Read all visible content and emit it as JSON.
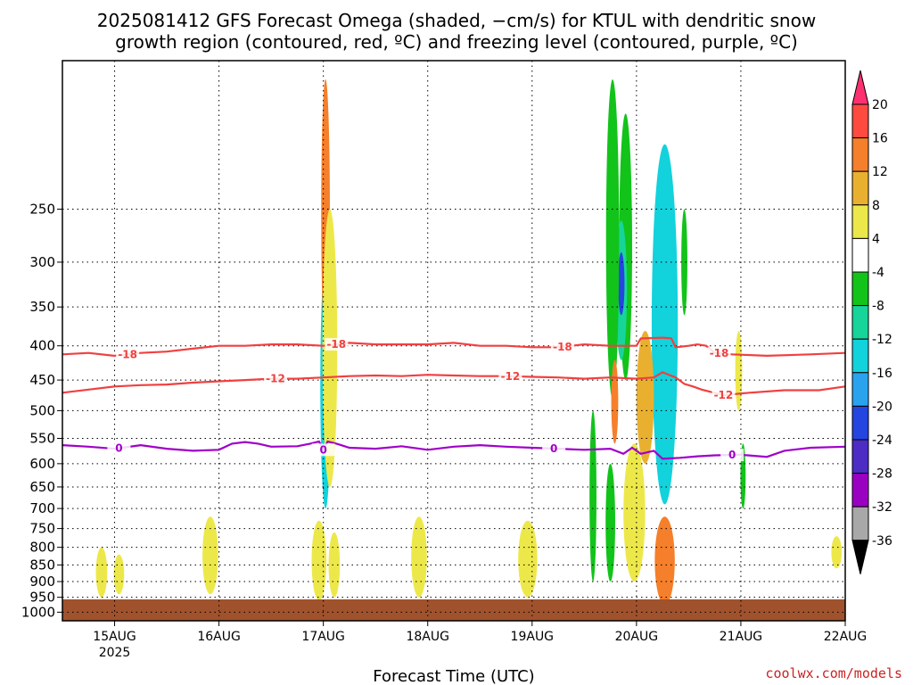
{
  "title_line1": "2025081412 GFS Forecast Omega (shaded, −cm/s) for KTUL with dendritic snow",
  "title_line2": "growth region (contoured, red, ºC) and freezing level (contoured, purple, ºC)",
  "credit": "coolwx.com/models",
  "colors": {
    "dgz": "#f04040",
    "freezing": "#a000c8",
    "ground": "#a0522d"
  },
  "chart_data": {
    "type": "heatmap",
    "xlabel": "Forecast Time (UTC)",
    "ylabel": "",
    "x_range_hours": [
      -12,
      168
    ],
    "y_range_hpa": [
      150,
      1030
    ],
    "y_scale": "log-pressure",
    "grid": true,
    "x_ticks": [
      {
        "hour": 0,
        "label": "15AUG",
        "sub": "2025"
      },
      {
        "hour": 24,
        "label": "16AUG",
        "sub": ""
      },
      {
        "hour": 48,
        "label": "17AUG",
        "sub": ""
      },
      {
        "hour": 72,
        "label": "18AUG",
        "sub": ""
      },
      {
        "hour": 96,
        "label": "19AUG",
        "sub": ""
      },
      {
        "hour": 120,
        "label": "20AUG",
        "sub": ""
      },
      {
        "hour": 144,
        "label": "21AUG",
        "sub": ""
      },
      {
        "hour": 168,
        "label": "22AUG",
        "sub": ""
      }
    ],
    "y_ticks": [
      250,
      300,
      350,
      400,
      450,
      500,
      550,
      600,
      650,
      700,
      750,
      800,
      850,
      900,
      950,
      1000
    ],
    "colorbar": {
      "labels": [
        20,
        16,
        12,
        8,
        4,
        -4,
        -8,
        -12,
        -16,
        -20,
        -24,
        -28,
        -32,
        -36
      ],
      "colors": [
        "#ff3070",
        "#ff4a40",
        "#f57f2a",
        "#e9b030",
        "#ede84a",
        "#ffffff",
        "#12c31a",
        "#17d59a",
        "#12d2dc",
        "#2aa3ef",
        "#2545e0",
        "#4d2bc5",
        "#9a00c2",
        "#a8a8a8",
        "#000000"
      ]
    },
    "contours": [
      {
        "value": -18,
        "label": "-18",
        "color": "#f04040",
        "points": [
          [
            -12,
            412
          ],
          [
            -6,
            410
          ],
          [
            0,
            414
          ],
          [
            6,
            410
          ],
          [
            12,
            408
          ],
          [
            18,
            404
          ],
          [
            24,
            400
          ],
          [
            30,
            400
          ],
          [
            36,
            398
          ],
          [
            42,
            398
          ],
          [
            48,
            400
          ],
          [
            54,
            396
          ],
          [
            60,
            398
          ],
          [
            66,
            398
          ],
          [
            72,
            398
          ],
          [
            78,
            396
          ],
          [
            84,
            400
          ],
          [
            90,
            400
          ],
          [
            96,
            402
          ],
          [
            102,
            402
          ],
          [
            108,
            398
          ],
          [
            114,
            400
          ],
          [
            120,
            400
          ],
          [
            121,
            390
          ],
          [
            126,
            389
          ],
          [
            128,
            390
          ],
          [
            129,
            402
          ],
          [
            132,
            400
          ],
          [
            134,
            398
          ],
          [
            136,
            400
          ],
          [
            138,
            410
          ],
          [
            142,
            412
          ],
          [
            150,
            414
          ],
          [
            160,
            412
          ],
          [
            168,
            410
          ]
        ],
        "label_hours": [
          3,
          51,
          103,
          139
        ]
      },
      {
        "value": -12,
        "label": "-12",
        "color": "#f04040",
        "points": [
          [
            -12,
            470
          ],
          [
            -6,
            465
          ],
          [
            0,
            460
          ],
          [
            6,
            458
          ],
          [
            12,
            457
          ],
          [
            18,
            454
          ],
          [
            24,
            452
          ],
          [
            30,
            450
          ],
          [
            36,
            448
          ],
          [
            42,
            448
          ],
          [
            48,
            446
          ],
          [
            54,
            444
          ],
          [
            60,
            443
          ],
          [
            66,
            444
          ],
          [
            72,
            442
          ],
          [
            78,
            443
          ],
          [
            84,
            444
          ],
          [
            90,
            444
          ],
          [
            96,
            445
          ],
          [
            102,
            446
          ],
          [
            108,
            448
          ],
          [
            114,
            446
          ],
          [
            120,
            448
          ],
          [
            124,
            446
          ],
          [
            126,
            438
          ],
          [
            129,
            446
          ],
          [
            131,
            456
          ],
          [
            133,
            460
          ],
          [
            135,
            465
          ],
          [
            140,
            474
          ],
          [
            146,
            470
          ],
          [
            154,
            466
          ],
          [
            162,
            466
          ],
          [
            168,
            460
          ]
        ],
        "label_hours": [
          37,
          91,
          140
        ]
      },
      {
        "value": 0,
        "label": "0",
        "color": "#a000c8",
        "points": [
          [
            -12,
            563
          ],
          [
            -6,
            566
          ],
          [
            0,
            570
          ],
          [
            6,
            563
          ],
          [
            12,
            570
          ],
          [
            18,
            574
          ],
          [
            24,
            572
          ],
          [
            27,
            560
          ],
          [
            30,
            557
          ],
          [
            33,
            560
          ],
          [
            36,
            566
          ],
          [
            42,
            565
          ],
          [
            45,
            560
          ],
          [
            47,
            556
          ],
          [
            48,
            572
          ],
          [
            49,
            556
          ],
          [
            51,
            560
          ],
          [
            54,
            568
          ],
          [
            60,
            570
          ],
          [
            66,
            565
          ],
          [
            72,
            572
          ],
          [
            78,
            566
          ],
          [
            84,
            563
          ],
          [
            90,
            566
          ],
          [
            96,
            568
          ],
          [
            102,
            570
          ],
          [
            108,
            572
          ],
          [
            114,
            570
          ],
          [
            117,
            580
          ],
          [
            119,
            568
          ],
          [
            121,
            580
          ],
          [
            124,
            574
          ],
          [
            126,
            590
          ],
          [
            130,
            588
          ],
          [
            134,
            585
          ],
          [
            138,
            583
          ],
          [
            144,
            582
          ],
          [
            150,
            586
          ],
          [
            154,
            574
          ],
          [
            160,
            568
          ],
          [
            168,
            566
          ]
        ],
        "label_hours": [
          1,
          48,
          101,
          142
        ]
      }
    ],
    "omega_features": [
      {
        "hour": 126.5,
        "p_top": 290,
        "p_bot": 615,
        "width": 2.2,
        "color": "#000000"
      },
      {
        "hour": 126.5,
        "p_top": 275,
        "p_bot": 640,
        "width": 3.2,
        "color": "#9a00c2"
      },
      {
        "hour": 126.5,
        "p_top": 245,
        "p_bot": 660,
        "width": 4.2,
        "color": "#2aa3ef"
      },
      {
        "hour": 126.5,
        "p_top": 200,
        "p_bot": 690,
        "width": 6.0,
        "color": "#12d2dc"
      },
      {
        "hour": 126.5,
        "p_top": 740,
        "p_bot": 960,
        "width": 3.2,
        "color": "#ff3070"
      },
      {
        "hour": 126.5,
        "p_top": 720,
        "p_bot": 975,
        "width": 4.6,
        "color": "#f57f2a"
      },
      {
        "hour": 122,
        "p_top": 380,
        "p_bot": 600,
        "width": 4.0,
        "color": "#e9b030"
      },
      {
        "hour": 119.5,
        "p_top": 640,
        "p_bot": 850,
        "width": 2.0,
        "color": "#ff3070"
      },
      {
        "hour": 119.5,
        "p_top": 600,
        "p_bot": 880,
        "width": 3.6,
        "color": "#f57f2a"
      },
      {
        "hour": 119.5,
        "p_top": 560,
        "p_bot": 900,
        "width": 5.0,
        "color": "#ede84a"
      },
      {
        "hour": 117.5,
        "p_top": 180,
        "p_bot": 450,
        "width": 3.0,
        "color": "#12c31a"
      },
      {
        "hour": 116.5,
        "p_top": 260,
        "p_bot": 420,
        "width": 2.6,
        "color": "#17d59a"
      },
      {
        "hour": 116.5,
        "p_top": 290,
        "p_bot": 360,
        "width": 1.5,
        "color": "#2545e0"
      },
      {
        "hour": 114.5,
        "p_top": 160,
        "p_bot": 480,
        "width": 3.0,
        "color": "#12c31a"
      },
      {
        "hour": 115,
        "p_top": 420,
        "p_bot": 560,
        "width": 1.6,
        "color": "#f57f2a"
      },
      {
        "hour": 114,
        "p_top": 600,
        "p_bot": 900,
        "width": 2.2,
        "color": "#12c31a"
      },
      {
        "hour": 110,
        "p_top": 500,
        "p_bot": 900,
        "width": 1.6,
        "color": "#12c31a"
      },
      {
        "hour": 48.5,
        "p_top": 380,
        "p_bot": 650,
        "width": 1.4,
        "color": "#2545e0"
      },
      {
        "hour": 48.5,
        "p_top": 300,
        "p_bot": 700,
        "width": 2.4,
        "color": "#12d2dc"
      },
      {
        "hour": 48.5,
        "p_top": 160,
        "p_bot": 400,
        "width": 2.0,
        "color": "#f57f2a"
      },
      {
        "hour": 49.5,
        "p_top": 250,
        "p_bot": 650,
        "width": 3.4,
        "color": "#ede84a"
      },
      {
        "hour": 47,
        "p_top": 760,
        "p_bot": 940,
        "width": 1.4,
        "color": "#ff3070"
      },
      {
        "hour": 47,
        "p_top": 730,
        "p_bot": 960,
        "width": 3.4,
        "color": "#ede84a"
      },
      {
        "hour": 50.5,
        "p_top": 780,
        "p_bot": 920,
        "width": 1.2,
        "color": "#ff3070"
      },
      {
        "hour": 50.5,
        "p_top": 760,
        "p_bot": 950,
        "width": 2.6,
        "color": "#ede84a"
      },
      {
        "hour": 22,
        "p_top": 770,
        "p_bot": 900,
        "width": 1.4,
        "color": "#ff3070"
      },
      {
        "hour": 22,
        "p_top": 720,
        "p_bot": 940,
        "width": 3.6,
        "color": "#ede84a"
      },
      {
        "hour": 70,
        "p_top": 780,
        "p_bot": 900,
        "width": 1.4,
        "color": "#ff3070"
      },
      {
        "hour": 70,
        "p_top": 720,
        "p_bot": 950,
        "width": 3.6,
        "color": "#ede84a"
      },
      {
        "hour": 95,
        "p_top": 790,
        "p_bot": 880,
        "width": 1.8,
        "color": "#ff3070"
      },
      {
        "hour": 95,
        "p_top": 730,
        "p_bot": 950,
        "width": 4.4,
        "color": "#ede84a"
      },
      {
        "hour": -3,
        "p_top": 800,
        "p_bot": 950,
        "width": 2.6,
        "color": "#ede84a"
      },
      {
        "hour": 1,
        "p_top": 820,
        "p_bot": 940,
        "width": 2.4,
        "color": "#ede84a"
      },
      {
        "hour": 131,
        "p_top": 250,
        "p_bot": 360,
        "width": 1.4,
        "color": "#12c31a"
      },
      {
        "hour": 144.5,
        "p_top": 560,
        "p_bot": 700,
        "width": 1.2,
        "color": "#12c31a"
      },
      {
        "hour": 143.5,
        "p_top": 380,
        "p_bot": 500,
        "width": 1.6,
        "color": "#ede84a"
      },
      {
        "hour": 166,
        "p_top": 770,
        "p_bot": 860,
        "width": 2.4,
        "color": "#ede84a"
      }
    ]
  }
}
